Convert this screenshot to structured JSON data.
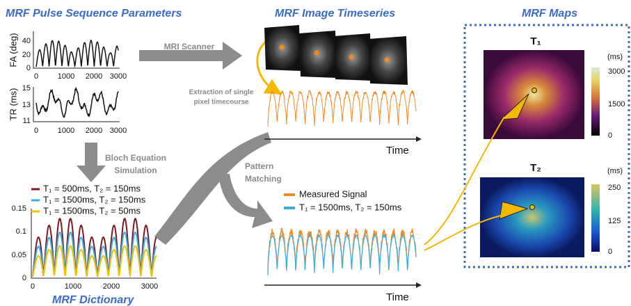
{
  "pulse": {
    "title": "MRF Pulse Sequence Parameters",
    "fa_plot": {
      "ylabel": "FA (deg)",
      "yticks": [
        "0",
        "20",
        "40"
      ],
      "xticks": [
        "0",
        "1000",
        "2000",
        "3000"
      ]
    },
    "tr_plot": {
      "ylabel": "TR (ms)",
      "yticks": [
        "11",
        "13",
        "15"
      ],
      "xticks": [
        "0",
        "1000",
        "2000",
        "3000"
      ]
    }
  },
  "simulation": {
    "line1": "Bloch Equation",
    "line2": "Simulation"
  },
  "dictionary": {
    "title": "MRF Dictionary",
    "legend": [
      "T₁ = 500ms, T₂ = 150ms",
      "T₁ = 1500ms, T₂ = 150ms",
      "T₁ = 1500ms, T₂ = 50ms"
    ],
    "yticks": [
      "0",
      "0.05",
      "0.1",
      "0.15"
    ],
    "xticks": [
      "0",
      "1000",
      "2000",
      "3000"
    ]
  },
  "scanner": {
    "label": "MRI Scanner"
  },
  "timeseries": {
    "title": "MRF Image Timeseries",
    "extraction_line1": "Extraction of single",
    "extraction_line2": "pixel timecourse",
    "axis_label": "Time"
  },
  "matching": {
    "line1": "Pattern",
    "line2": "Matching",
    "legend": [
      "Measured Signal",
      "T₁ = 1500ms, T₂ = 150ms"
    ],
    "axis_label": "Time"
  },
  "maps": {
    "title": "MRF Maps",
    "t1": {
      "title": "T₁",
      "unit": "(ms)",
      "ticks": [
        "3000",
        "1500",
        "0"
      ]
    },
    "t2": {
      "title": "T₂",
      "unit": "(ms)",
      "ticks": [
        "250",
        "125",
        "0"
      ]
    }
  }
}
